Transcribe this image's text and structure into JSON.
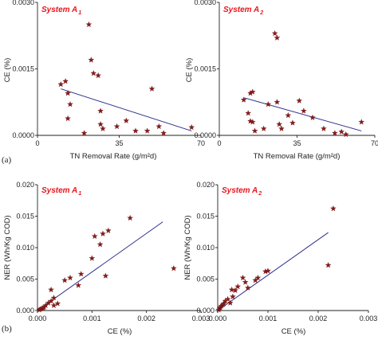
{
  "row_labels": [
    "(a)",
    "(b)"
  ],
  "chart_data": [
    {
      "type": "scatter",
      "panel": "a-1",
      "title": "System A",
      "title_sub": "1",
      "xlabel": "TN Removal Rate (g/m²d)",
      "ylabel": "CE (%)",
      "xlim": [
        0,
        70
      ],
      "ylim": [
        0,
        0.003
      ],
      "xticks": [
        "0",
        "35",
        "70"
      ],
      "yticks": [
        "0.0000",
        "0.0015",
        "0.0030"
      ],
      "points": [
        [
          10,
          0.00115
        ],
        [
          12,
          0.00122
        ],
        [
          13,
          0.00095
        ],
        [
          14,
          0.0007
        ],
        [
          13,
          0.00038
        ],
        [
          22,
          0.0025
        ],
        [
          23,
          0.0017
        ],
        [
          24,
          0.0014
        ],
        [
          26,
          0.00135
        ],
        [
          27,
          0.00055
        ],
        [
          27,
          0.00025
        ],
        [
          28,
          0.00015
        ],
        [
          20,
          5e-05
        ],
        [
          34,
          0.0002
        ],
        [
          38,
          0.00033
        ],
        [
          42,
          0.0001
        ],
        [
          47,
          0.0001
        ],
        [
          52,
          0.0002
        ],
        [
          49,
          0.00105
        ],
        [
          54,
          5e-05
        ],
        [
          66,
          0.00018
        ]
      ],
      "fit": [
        [
          10,
          0.00105
        ],
        [
          66,
          0.0001
        ]
      ]
    },
    {
      "type": "scatter",
      "panel": "a-2",
      "title": "System A",
      "title_sub": "2",
      "xlabel": "TN Removal Rate (g/m²d)",
      "ylabel": "CE (%)",
      "xlim": [
        0,
        70
      ],
      "ylim": [
        0,
        0.003
      ],
      "xticks": [
        "0",
        "35",
        "70"
      ],
      "yticks": [
        "0.0000",
        "0.0015",
        "0.0030"
      ],
      "points": [
        [
          11,
          0.0008
        ],
        [
          13,
          0.0005
        ],
        [
          14,
          0.00032
        ],
        [
          14,
          0.00095
        ],
        [
          15,
          0.00098
        ],
        [
          15,
          0.0003
        ],
        [
          16,
          0.0001
        ],
        [
          20,
          0.00015
        ],
        [
          22,
          0.0007
        ],
        [
          25,
          0.0023
        ],
        [
          26,
          0.0022
        ],
        [
          26,
          0.00075
        ],
        [
          27,
          0.00025
        ],
        [
          28,
          0.00015
        ],
        [
          31,
          0.00045
        ],
        [
          33,
          0.00028
        ],
        [
          36,
          0.00078
        ],
        [
          38,
          0.00055
        ],
        [
          42,
          0.0004
        ],
        [
          47,
          0.00015
        ],
        [
          52,
          5e-05
        ],
        [
          55,
          8e-05
        ],
        [
          57,
          2e-05
        ],
        [
          64,
          0.0003
        ]
      ],
      "fit": [
        [
          11,
          0.00085
        ],
        [
          64,
          0.0001
        ]
      ]
    },
    {
      "type": "scatter",
      "panel": "b-1",
      "title": "System A",
      "title_sub": "1",
      "xlabel": "CE (%)",
      "ylabel": "NER (Wh/Kg COD)",
      "xlim": [
        0,
        0.003
      ],
      "ylim": [
        0,
        0.02
      ],
      "xticks": [
        "0.000",
        "0.001",
        "0.002",
        "0.003"
      ],
      "yticks": [
        "0.000",
        "0.005",
        "0.010",
        "0.015",
        "0.020"
      ],
      "points": [
        [
          3e-05,
          0.0001
        ],
        [
          5e-05,
          0.0002
        ],
        [
          8e-05,
          0.0003
        ],
        [
          0.0001,
          0.0004
        ],
        [
          0.00012,
          0.0005
        ],
        [
          0.00015,
          0.0008
        ],
        [
          0.0002,
          0.0012
        ],
        [
          0.00025,
          0.0015
        ],
        [
          0.0003,
          0.002
        ],
        [
          0.00025,
          0.0033
        ],
        [
          0.0003,
          0.0008
        ],
        [
          0.00037,
          0.0011
        ],
        [
          0.0005,
          0.0048
        ],
        [
          0.0006,
          0.0052
        ],
        [
          0.00075,
          0.004
        ],
        [
          0.0008,
          0.0058
        ],
        [
          0.001,
          0.0083
        ],
        [
          0.00115,
          0.0105
        ],
        [
          0.00105,
          0.0118
        ],
        [
          0.0012,
          0.0122
        ],
        [
          0.00125,
          0.0055
        ],
        [
          0.0013,
          0.0127
        ],
        [
          0.0017,
          0.0147
        ],
        [
          0.0025,
          0.0067
        ]
      ],
      "fit": [
        [
          0.0,
          0.0
        ],
        [
          0.0023,
          0.0141
        ]
      ]
    },
    {
      "type": "scatter",
      "panel": "b-2",
      "title": "System A",
      "title_sub": "2",
      "xlabel": "CE (%)",
      "ylabel": "NER (Wh/Kg COD)",
      "xlim": [
        0,
        0.003
      ],
      "ylim": [
        0,
        0.02
      ],
      "xticks": [
        "0.000",
        "0.001",
        "0.002",
        "0.003"
      ],
      "yticks": [
        "0.000",
        "0.005",
        "0.010",
        "0.015",
        "0.020"
      ],
      "points": [
        [
          2e-05,
          0.0001
        ],
        [
          4e-05,
          0.0003
        ],
        [
          5e-05,
          0.0005
        ],
        [
          7e-05,
          0.0007
        ],
        [
          0.0001,
          0.0009
        ],
        [
          0.00012,
          0.0011
        ],
        [
          0.00015,
          0.0015
        ],
        [
          0.0002,
          0.0018
        ],
        [
          0.00025,
          0.0012
        ],
        [
          0.00028,
          0.0033
        ],
        [
          0.0003,
          0.0022
        ],
        [
          0.00035,
          0.0032
        ],
        [
          0.0004,
          0.0038
        ],
        [
          0.0005,
          0.0052
        ],
        [
          0.00055,
          0.0045
        ],
        [
          0.0006,
          0.0036
        ],
        [
          0.00075,
          0.0048
        ],
        [
          0.0008,
          0.0052
        ],
        [
          0.00095,
          0.0062
        ],
        [
          0.001,
          0.0063
        ],
        [
          0.0022,
          0.0072
        ],
        [
          0.0023,
          0.0162
        ]
      ],
      "fit": [
        [
          0.0,
          0.0
        ],
        [
          0.0022,
          0.0124
        ]
      ]
    }
  ]
}
